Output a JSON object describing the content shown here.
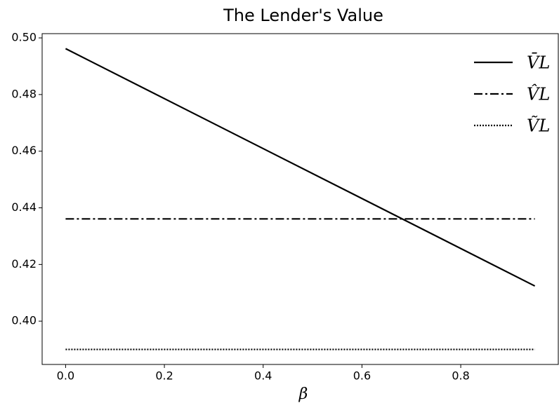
{
  "chart_data": {
    "type": "line",
    "title": "The Lender's Value",
    "x_label": "β",
    "x": [
      0,
      0.95
    ],
    "series": [
      {
        "name": "V̄L",
        "color": "#000000",
        "linestyle": "solid",
        "values": [
          0.4962,
          0.4124
        ]
      },
      {
        "name": "V̂L",
        "color": "#000000",
        "linestyle": "dashdot",
        "values": [
          0.4361,
          0.4361
        ]
      },
      {
        "name": "ṼL",
        "color": "#000000",
        "linestyle": "dotted",
        "values": [
          0.39,
          0.39
        ]
      }
    ],
    "xlim": [
      -0.0475,
      0.9975
    ],
    "xticks": [
      {
        "value": 0,
        "label": "0.0"
      },
      0.2,
      0.4,
      0.6,
      0.8
    ],
    "ylim": [
      0.3847,
      0.5015
    ],
    "yticks": [
      {
        "value": 0.4,
        "label": "0.40"
      },
      0.42,
      0.44,
      0.46,
      0.48,
      {
        "value": 0.5,
        "label": "0.50"
      }
    ],
    "grid": false,
    "legend": "upper right"
  }
}
